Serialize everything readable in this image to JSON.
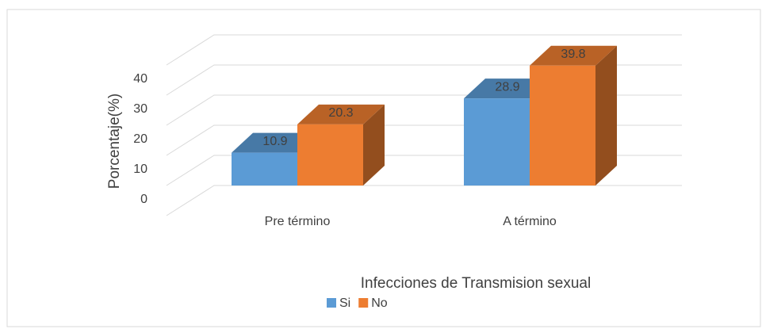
{
  "chart_data": {
    "type": "bar3d",
    "categories": [
      "Pre término",
      "A término"
    ],
    "series": [
      {
        "name": "Si",
        "color": "#5b9bd5",
        "values": [
          10.9,
          28.9
        ]
      },
      {
        "name": "No",
        "color": "#ed7d31",
        "values": [
          20.3,
          39.8
        ]
      }
    ],
    "ylabel": "Porcentaje(%)",
    "legend_title": "Infecciones de Transmision sexual",
    "ylim": [
      0,
      50
    ],
    "yticks": [
      0,
      10,
      20,
      30,
      40
    ],
    "grid": true,
    "legend": "bottom"
  }
}
